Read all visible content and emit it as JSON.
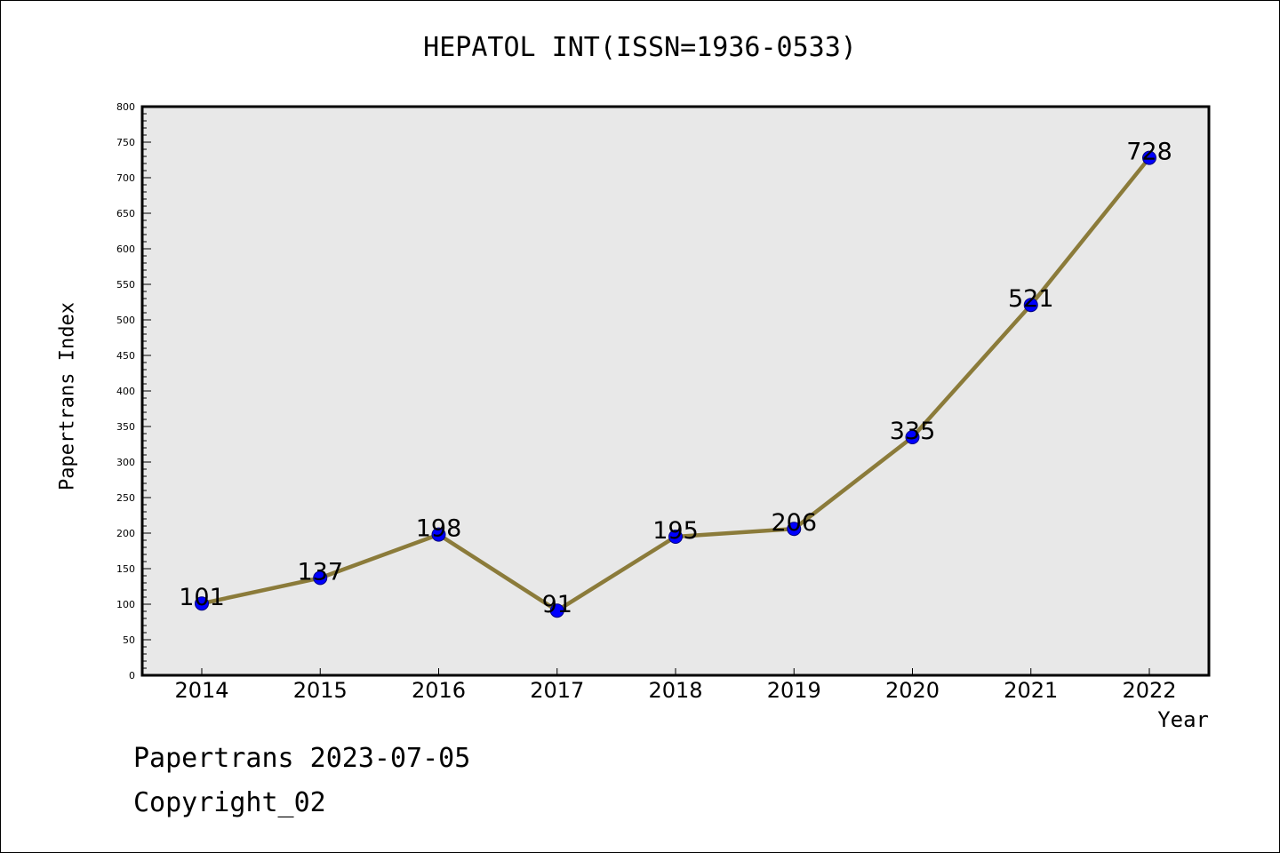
{
  "chart_data": {
    "type": "line",
    "title": "HEPATOL INT(ISSN=1936-0533)",
    "xlabel": "Year",
    "ylabel": "Papertrans Index",
    "categories": [
      "2014",
      "2015",
      "2016",
      "2017",
      "2018",
      "2019",
      "2020",
      "2021",
      "2022"
    ],
    "values": [
      101,
      137,
      198,
      91,
      195,
      206,
      335,
      521,
      728
    ],
    "data_labels": [
      "101",
      "137",
      "198",
      "91",
      "195",
      "206",
      "335",
      "521",
      "728"
    ],
    "ylim": [
      0,
      800
    ],
    "ytick_step": 50,
    "grid": false,
    "line_color": "#8b7b3a",
    "marker_color": "#0000ff",
    "plot_background": "#e8e8e8"
  },
  "footer": {
    "line1": "Papertrans 2023-07-05",
    "line2": "Copyright_02"
  }
}
